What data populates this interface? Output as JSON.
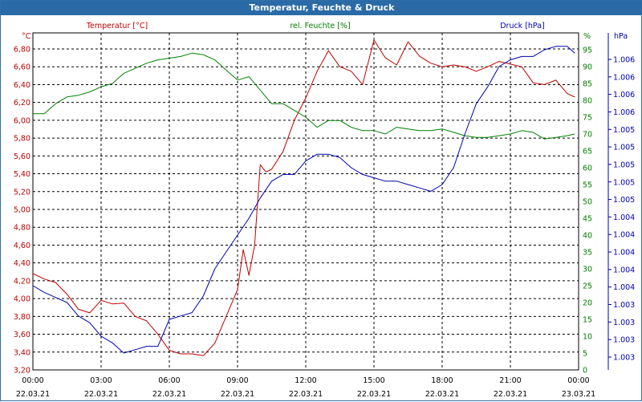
{
  "window": {
    "title": "Temperatur, Feuchte & Druck"
  },
  "chart_data": {
    "type": "line",
    "title": "Temperatur, Feuchte & Druck",
    "grid": true,
    "colors": {
      "temp": "#c00000",
      "hum": "#008000",
      "press": "#0000b0",
      "title_bg": "#2a6aa6",
      "grid": "#000000"
    },
    "axes": {
      "temp": {
        "label": "Temperatur [°C]",
        "unit": "°C",
        "ylim": [
          3.2,
          6.98
        ],
        "ticks": [
          "3,20",
          "3,40",
          "3,60",
          "3,80",
          "4,00",
          "4,20",
          "4,40",
          "4,60",
          "4,80",
          "5,00",
          "5,20",
          "5,40",
          "5,60",
          "5,80",
          "6,00",
          "6,20",
          "6,40",
          "6,60",
          "6,80"
        ]
      },
      "hum": {
        "label": "rel. Feuchte [%]",
        "unit": "%",
        "ylim": [
          0,
          100
        ],
        "ticks": [
          "0",
          "5",
          "10",
          "15",
          "20",
          "25",
          "30",
          "35",
          "40",
          "45",
          "50",
          "55",
          "60",
          "65",
          "70",
          "75",
          "80",
          "85",
          "90",
          "95"
        ]
      },
      "press": {
        "label": "Druck [hPa]",
        "unit": "hPa",
        "ylim": [
          0,
          100
        ],
        "ticks": [
          "1.003",
          "1.003",
          "1.003",
          "1.003",
          "1.004",
          "1.004",
          "1.004",
          "1.004",
          "1.004",
          "1.005",
          "1.005",
          "1.005",
          "1.005",
          "1.005",
          "1.006",
          "1.006",
          "1.006",
          "1.006"
        ]
      }
    },
    "x_ticks": [
      {
        "time": "00:00",
        "date": "22.03.21"
      },
      {
        "time": "03:00",
        "date": "22.03.21"
      },
      {
        "time": "06:00",
        "date": "22.03.21"
      },
      {
        "time": "09:00",
        "date": "22.03.21"
      },
      {
        "time": "12:00",
        "date": "22.03.21"
      },
      {
        "time": "15:00",
        "date": "22.03.21"
      },
      {
        "time": "18:00",
        "date": "22.03.21"
      },
      {
        "time": "21:00",
        "date": "22.03.21"
      },
      {
        "time": "00:00",
        "date": "23.03.21"
      }
    ],
    "series": [
      {
        "name": "Temperatur [°C]",
        "axis": "temp",
        "x": [
          "00:00",
          "00:30",
          "01:00",
          "01:30",
          "02:00",
          "02:30",
          "03:00",
          "03:30",
          "04:00",
          "04:30",
          "05:00",
          "05:30",
          "06:00",
          "06:30",
          "07:00",
          "07:30",
          "08:00",
          "08:30",
          "09:00",
          "09:15",
          "09:30",
          "09:45",
          "10:00",
          "10:15",
          "10:30",
          "11:00",
          "11:30",
          "12:00",
          "12:30",
          "13:00",
          "13:30",
          "14:00",
          "14:30",
          "15:00",
          "15:30",
          "16:00",
          "16:30",
          "17:00",
          "17:30",
          "18:00",
          "18:30",
          "19:00",
          "19:30",
          "20:00",
          "20:30",
          "21:00",
          "21:30",
          "22:00",
          "22:30",
          "23:00",
          "23:30",
          "23:50"
        ],
        "values": [
          4.28,
          4.22,
          4.18,
          4.05,
          3.88,
          3.84,
          3.98,
          3.94,
          3.95,
          3.8,
          3.75,
          3.6,
          3.42,
          3.38,
          3.38,
          3.36,
          3.5,
          3.8,
          4.1,
          4.55,
          4.26,
          4.6,
          5.5,
          5.42,
          5.45,
          5.65,
          6.0,
          6.25,
          6.55,
          6.78,
          6.6,
          6.55,
          6.4,
          6.9,
          6.7,
          6.62,
          6.88,
          6.72,
          6.64,
          6.6,
          6.62,
          6.6,
          6.55,
          6.6,
          6.66,
          6.63,
          6.6,
          6.42,
          6.4,
          6.45,
          6.3,
          6.26
        ]
      },
      {
        "name": "rel. Feuchte [%]",
        "axis": "hum",
        "x": [
          "00:00",
          "00:30",
          "01:00",
          "01:30",
          "02:00",
          "02:30",
          "03:00",
          "03:30",
          "04:00",
          "04:30",
          "05:00",
          "05:30",
          "06:00",
          "06:30",
          "07:00",
          "07:30",
          "08:00",
          "08:30",
          "09:00",
          "09:30",
          "10:00",
          "10:30",
          "11:00",
          "11:30",
          "12:00",
          "12:30",
          "13:00",
          "13:30",
          "14:00",
          "14:30",
          "15:00",
          "15:30",
          "16:00",
          "16:30",
          "17:00",
          "17:30",
          "18:00",
          "18:30",
          "19:00",
          "19:30",
          "20:00",
          "20:30",
          "21:00",
          "21:30",
          "22:00",
          "22:30",
          "23:00",
          "23:30",
          "23:50"
        ],
        "values": [
          76,
          76,
          79,
          81,
          81.5,
          82.5,
          84,
          85,
          88,
          89.5,
          91,
          92,
          92.5,
          93,
          94,
          93.5,
          92,
          89,
          86,
          87,
          83,
          79,
          79,
          77,
          75,
          72,
          74,
          74,
          72,
          71,
          71,
          70,
          72,
          71.5,
          71,
          71,
          71.5,
          70.5,
          69.5,
          69,
          69,
          69.5,
          70,
          71,
          70.5,
          68.5,
          69,
          69.5,
          70
        ]
      },
      {
        "name": "Druck [hPa]",
        "axis": "press",
        "x": [
          "00:00",
          "00:30",
          "01:00",
          "01:30",
          "02:00",
          "02:30",
          "03:00",
          "03:30",
          "04:00",
          "04:30",
          "05:00",
          "05:30",
          "06:00",
          "06:30",
          "07:00",
          "07:30",
          "08:00",
          "08:30",
          "09:00",
          "09:30",
          "10:00",
          "10:30",
          "11:00",
          "11:30",
          "12:00",
          "12:30",
          "13:00",
          "13:30",
          "14:00",
          "14:30",
          "15:00",
          "15:30",
          "16:00",
          "16:30",
          "17:00",
          "17:30",
          "18:00",
          "18:30",
          "19:00",
          "19:30",
          "20:00",
          "20:30",
          "21:00",
          "21:30",
          "22:00",
          "22:30",
          "23:00",
          "23:30",
          "23:50"
        ],
        "values": [
          25,
          23,
          21.5,
          20,
          16,
          14,
          10,
          8,
          5,
          6,
          7,
          7,
          15,
          16,
          17,
          22,
          30,
          35,
          40,
          45,
          51,
          56,
          58,
          58,
          62,
          64,
          64,
          63,
          60,
          58,
          57,
          56,
          56,
          55,
          54,
          53,
          55,
          60,
          70,
          79,
          84,
          90,
          92,
          93,
          93,
          95,
          96,
          96,
          94
        ]
      }
    ]
  }
}
